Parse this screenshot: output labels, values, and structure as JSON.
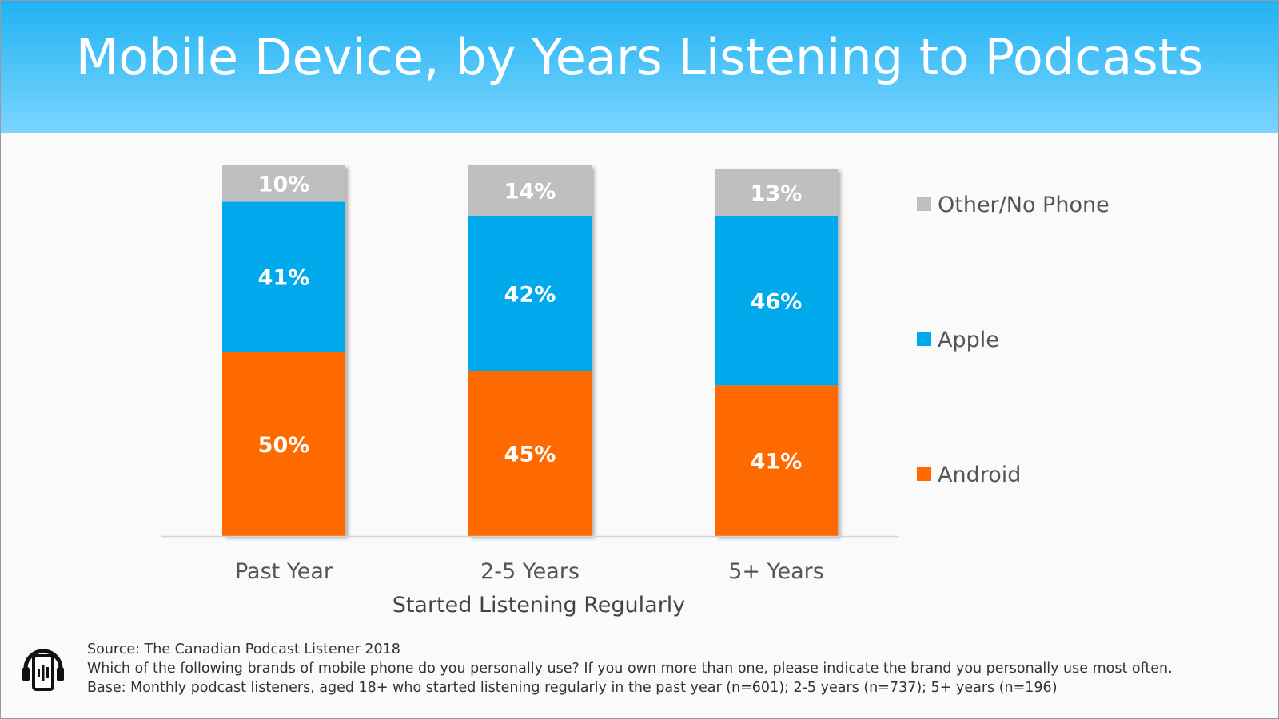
{
  "title": "Mobile Device, by Years Listening to Podcasts",
  "colors": {
    "banner_start": "#21b2f3",
    "banner_end": "#7bd5ff",
    "android": "#ff6a00",
    "apple": "#00a8ec",
    "other": "#bfbfbf"
  },
  "chart_data": {
    "type": "bar",
    "stacked": true,
    "categories": [
      "Past Year",
      "2-5 Years",
      "5+ Years"
    ],
    "series": [
      {
        "name": "Android",
        "color": "#ff6a00",
        "values": [
          50,
          45,
          41
        ]
      },
      {
        "name": "Apple",
        "color": "#00a8ec",
        "values": [
          41,
          42,
          46
        ]
      },
      {
        "name": "Other/No Phone",
        "color": "#bfbfbf",
        "values": [
          10,
          14,
          13
        ]
      }
    ],
    "data_labels": [
      [
        "50%",
        "45%",
        "41%"
      ],
      [
        "41%",
        "42%",
        "46%"
      ],
      [
        "10%",
        "14%",
        "13%"
      ]
    ],
    "xlabel": "Started Listening Regularly",
    "ylabel": "",
    "ylim": [
      0,
      100
    ],
    "grid": false,
    "legend": {
      "position": "right",
      "order": [
        "Other/No Phone",
        "Apple",
        "Android"
      ]
    }
  },
  "footer": {
    "source": "Source:  The Canadian Podcast Listener 2018",
    "question": "Which of the following brands of mobile phone do you personally use? If you own more than one, please indicate the brand you personally use most often.",
    "base": "Base: Monthly podcast listeners, aged 18+ who started listening regularly in the past year (n=601); 2-5 years (n=737); 5+ years (n=196)"
  },
  "logo_icon": "podcast-phone-headphones-icon"
}
